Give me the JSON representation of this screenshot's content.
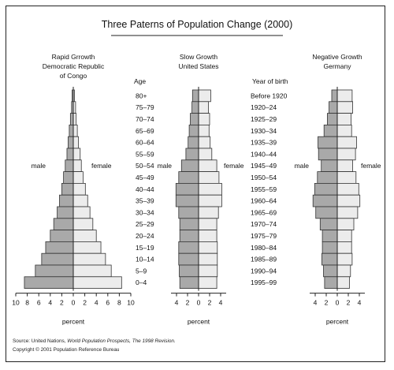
{
  "title": "Three Paterns of Population Change (2000)",
  "age_header": "Age",
  "year_header": "Year of birth",
  "age_groups": [
    "80+",
    "75–79",
    "70–74",
    "65–69",
    "60–64",
    "55–59",
    "50–54",
    "45–49",
    "40–44",
    "35–39",
    "30–34",
    "25–29",
    "20–24",
    "15–19",
    "10–14",
    "5–9",
    "0–4"
  ],
  "birth_years": [
    "Before 1920",
    "1920–24",
    "1925–29",
    "1930–34",
    "1935–39",
    "1940–44",
    "1945–49",
    "1950–54",
    "1955–59",
    "1960–64",
    "1965–69",
    "1970–74",
    "1975–79",
    "1980–84",
    "1985–89",
    "1990–94",
    "1995–99"
  ],
  "source_prefix": "Source: United Nations, ",
  "source_italic": "World Population Prospects, The 1998 Revision.",
  "copyright": "Copyright © 2001 Population Reference Bureau",
  "colors": {
    "male": "#a9a9a9",
    "female": "#ececec",
    "outline": "#333333"
  },
  "chart_data": [
    {
      "type": "bar",
      "orientation": "population-pyramid",
      "title": "Rapid Grrowth",
      "subtitle": "Democratic Republic of Congo",
      "male_label": "male",
      "female_label": "female",
      "xlabel": "percent",
      "xticks": [
        10,
        8,
        6,
        4,
        2,
        0,
        2,
        4,
        6,
        8,
        10
      ],
      "xlim": [
        -10,
        10
      ],
      "categories": [
        "80+",
        "75–79",
        "70–74",
        "65–69",
        "60–64",
        "55–59",
        "50–54",
        "45–49",
        "40–44",
        "35–39",
        "30–34",
        "25–29",
        "20–24",
        "15–19",
        "10–14",
        "5–9",
        "0–4"
      ],
      "series": [
        {
          "name": "male",
          "values": [
            0.2,
            0.3,
            0.5,
            0.7,
            0.9,
            1.1,
            1.4,
            1.7,
            2.0,
            2.4,
            2.8,
            3.4,
            4.0,
            4.8,
            5.5,
            6.6,
            8.5
          ]
        },
        {
          "name": "female",
          "values": [
            0.2,
            0.4,
            0.5,
            0.7,
            0.9,
            1.2,
            1.4,
            1.7,
            2.1,
            2.5,
            2.9,
            3.4,
            4.0,
            4.8,
            5.6,
            6.6,
            8.4
          ]
        }
      ]
    },
    {
      "type": "bar",
      "orientation": "population-pyramid",
      "title": "Slow Growth",
      "subtitle": "United States",
      "male_label": "male",
      "female_label": "female",
      "xlabel": "percent",
      "xticks": [
        4,
        2,
        0,
        2,
        4
      ],
      "xlim": [
        -5,
        5
      ],
      "categories": [
        "80+",
        "75–79",
        "70–74",
        "65–69",
        "60–64",
        "55–59",
        "50–54",
        "45–49",
        "40–44",
        "35–39",
        "30–34",
        "25–29",
        "20–24",
        "15–19",
        "10–14",
        "5–9",
        "0–4"
      ],
      "series": [
        {
          "name": "male",
          "values": [
            1.1,
            1.2,
            1.5,
            1.7,
            1.9,
            2.3,
            3.1,
            3.6,
            4.1,
            4.1,
            3.6,
            3.4,
            3.4,
            3.6,
            3.6,
            3.5,
            3.4
          ]
        },
        {
          "name": "female",
          "values": [
            2.2,
            1.8,
            2.0,
            1.9,
            2.1,
            2.4,
            3.3,
            3.7,
            4.2,
            4.2,
            3.6,
            3.3,
            3.3,
            3.4,
            3.4,
            3.4,
            3.3
          ]
        }
      ]
    },
    {
      "type": "bar",
      "orientation": "population-pyramid",
      "title": "Negative Growth",
      "subtitle": "Germany",
      "male_label": "male",
      "female_label": "female",
      "xlabel": "percent",
      "xticks": [
        4,
        2,
        0,
        2,
        4
      ],
      "xlim": [
        -5,
        5
      ],
      "categories": [
        "80+",
        "75–79",
        "70–74",
        "65–69",
        "60–64",
        "55–59",
        "50–54",
        "45–49",
        "40–44",
        "35–39",
        "30–34",
        "25–29",
        "20–24",
        "15–19",
        "10–14",
        "5–9",
        "0–4"
      ],
      "series": [
        {
          "name": "male",
          "values": [
            1.0,
            1.5,
            1.8,
            2.4,
            3.5,
            3.4,
            2.9,
            3.6,
            4.1,
            4.4,
            3.9,
            3.1,
            2.7,
            2.7,
            2.8,
            2.5,
            2.3
          ]
        },
        {
          "name": "female",
          "values": [
            2.7,
            2.8,
            2.5,
            2.6,
            3.5,
            3.3,
            2.8,
            3.4,
            3.9,
            4.1,
            3.7,
            3.0,
            2.6,
            2.6,
            2.7,
            2.4,
            2.2
          ]
        }
      ]
    }
  ]
}
